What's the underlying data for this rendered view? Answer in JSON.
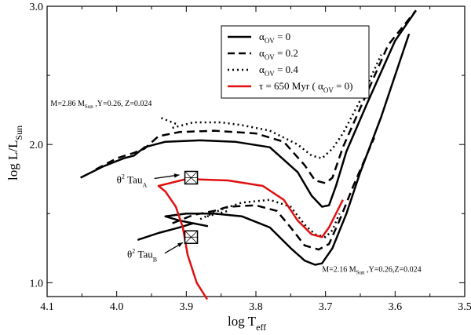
{
  "chart_data": {
    "type": "line",
    "x_reversed": true,
    "xlim": [
      4.1,
      3.5
    ],
    "ylim": [
      0.9,
      3.0
    ],
    "xticks": [
      "4.1",
      "4.0",
      "3.9",
      "3.8",
      "3.7",
      "3.6",
      "3.5"
    ],
    "xtick_values": [
      4.1,
      4.0,
      3.9,
      3.8,
      3.7,
      3.6,
      3.5
    ],
    "yticks": [
      "1.0",
      "2.0",
      "3.0"
    ],
    "ytick_values": [
      1.0,
      2.0,
      3.0
    ],
    "xlabel": {
      "main": "log T",
      "sub": "eff"
    },
    "ylabel": {
      "main": "log L/L",
      "sub": "Sun"
    },
    "legend": {
      "position": "top-right",
      "entries": [
        {
          "style": "solid",
          "color": "#000000",
          "alpha": "α",
          "sub": "OV",
          "rest": " = 0"
        },
        {
          "style": "dashed",
          "color": "#000000",
          "alpha": "α",
          "sub": "OV",
          "rest": " = 0.2"
        },
        {
          "style": "dotted",
          "color": "#000000",
          "alpha": "α",
          "sub": "OV",
          "rest": " = 0.4"
        },
        {
          "style": "red",
          "color": "#e01010",
          "text": "τ = 650 Myr (  α",
          "sub": "OV",
          "rest": " = 0)"
        }
      ]
    },
    "series": [
      {
        "name": "α_OV = 0, M = 2.86",
        "style": "solid",
        "points": [
          [
            4.052,
            1.76
          ],
          [
            4.02,
            1.84
          ],
          [
            3.99,
            1.9
          ],
          [
            3.975,
            1.92
          ],
          [
            3.96,
            1.98
          ],
          [
            3.93,
            2.02
          ],
          [
            3.88,
            2.03
          ],
          [
            3.83,
            2.02
          ],
          [
            3.78,
            1.98
          ],
          [
            3.74,
            1.8
          ],
          [
            3.72,
            1.63
          ],
          [
            3.705,
            1.55
          ],
          [
            3.695,
            1.56
          ],
          [
            3.685,
            1.7
          ],
          [
            3.67,
            1.95
          ],
          [
            3.64,
            2.3
          ],
          [
            3.6,
            2.75
          ],
          [
            3.57,
            2.97
          ]
        ]
      },
      {
        "name": "α_OV = 0.2, M = 2.86",
        "style": "dashed",
        "points": [
          [
            4.03,
            1.82
          ],
          [
            4.0,
            1.9
          ],
          [
            3.975,
            1.94
          ],
          [
            3.96,
            1.97
          ],
          [
            3.94,
            2.06
          ],
          [
            3.91,
            2.09
          ],
          [
            3.86,
            2.1
          ],
          [
            3.8,
            2.08
          ],
          [
            3.76,
            2.02
          ],
          [
            3.73,
            1.85
          ],
          [
            3.715,
            1.74
          ],
          [
            3.7,
            1.72
          ],
          [
            3.69,
            1.76
          ],
          [
            3.675,
            1.98
          ],
          [
            3.645,
            2.32
          ],
          [
            3.61,
            2.72
          ],
          [
            3.57,
            2.97
          ]
        ]
      },
      {
        "name": "α_OV = 0.4, M = 2.86",
        "style": "dotted",
        "points": [
          [
            3.92,
            2.12
          ],
          [
            3.89,
            2.16
          ],
          [
            3.85,
            2.16
          ],
          [
            3.82,
            2.14
          ],
          [
            3.78,
            2.1
          ],
          [
            3.74,
            2.0
          ],
          [
            3.72,
            1.92
          ],
          [
            3.705,
            1.9
          ],
          [
            3.69,
            1.97
          ],
          [
            3.675,
            2.08
          ],
          [
            3.65,
            2.32
          ],
          [
            3.62,
            2.65
          ]
        ]
      },
      {
        "name": "α_OV = 0.4 hook, M = 2.86",
        "style": "dotted",
        "points": [
          [
            3.915,
            2.15
          ],
          [
            3.94,
            2.2
          ]
        ]
      },
      {
        "name": "α_OV = 0, M = 2.16",
        "style": "solid",
        "points": [
          [
            3.97,
            1.31
          ],
          [
            3.94,
            1.36
          ],
          [
            3.91,
            1.4
          ],
          [
            3.89,
            1.43
          ],
          [
            3.87,
            1.41
          ],
          [
            3.91,
            1.45
          ],
          [
            3.93,
            1.48
          ],
          [
            3.9,
            1.5
          ],
          [
            3.86,
            1.5
          ],
          [
            3.82,
            1.48
          ],
          [
            3.78,
            1.4
          ],
          [
            3.75,
            1.25
          ],
          [
            3.73,
            1.16
          ],
          [
            3.715,
            1.13
          ],
          [
            3.705,
            1.14
          ],
          [
            3.69,
            1.25
          ],
          [
            3.67,
            1.5
          ],
          [
            3.65,
            1.8
          ],
          [
            3.62,
            2.2
          ],
          [
            3.6,
            2.5
          ],
          [
            3.58,
            2.8
          ]
        ]
      },
      {
        "name": "α_OV = 0.2, M = 2.16",
        "style": "dashed",
        "points": [
          [
            3.92,
            1.43
          ],
          [
            3.89,
            1.49
          ],
          [
            3.86,
            1.52
          ],
          [
            3.84,
            1.55
          ],
          [
            3.8,
            1.56
          ],
          [
            3.77,
            1.52
          ],
          [
            3.75,
            1.4
          ],
          [
            3.73,
            1.27
          ],
          [
            3.71,
            1.24
          ],
          [
            3.695,
            1.28
          ],
          [
            3.68,
            1.45
          ],
          [
            3.66,
            1.7
          ],
          [
            3.63,
            2.05
          ]
        ]
      },
      {
        "name": "α_OV = 0.4, M = 2.16",
        "style": "dotted",
        "points": [
          [
            3.88,
            1.46
          ],
          [
            3.85,
            1.53
          ],
          [
            3.82,
            1.58
          ],
          [
            3.78,
            1.6
          ],
          [
            3.75,
            1.55
          ],
          [
            3.73,
            1.42
          ],
          [
            3.715,
            1.35
          ],
          [
            3.7,
            1.33
          ],
          [
            3.69,
            1.38
          ],
          [
            3.68,
            1.5
          ]
        ]
      },
      {
        "name": "α_OV = 0.4 tail, M = 2.16",
        "style": "dotted",
        "points": [
          [
            3.87,
            1.48
          ],
          [
            3.84,
            1.52
          ]
        ]
      },
      {
        "name": "τ = 650 Myr isochrone",
        "style": "red",
        "points": [
          [
            3.87,
            0.88
          ],
          [
            3.885,
            1.0
          ],
          [
            3.898,
            1.2
          ],
          [
            3.905,
            1.4
          ],
          [
            3.915,
            1.55
          ],
          [
            3.93,
            1.66
          ],
          [
            3.94,
            1.7
          ],
          [
            3.9,
            1.75
          ],
          [
            3.84,
            1.74
          ],
          [
            3.79,
            1.7
          ],
          [
            3.76,
            1.6
          ],
          [
            3.74,
            1.45
          ],
          [
            3.72,
            1.35
          ],
          [
            3.705,
            1.33
          ],
          [
            3.695,
            1.4
          ],
          [
            3.68,
            1.55
          ],
          [
            3.675,
            1.6
          ]
        ]
      }
    ],
    "markers": [
      {
        "name": "theta2-tau-a-box",
        "x": 3.893,
        "y": 1.76
      },
      {
        "name": "theta2-tau-b-box",
        "x": 3.893,
        "y": 1.33
      }
    ],
    "annotations": [
      {
        "name": "track-label-286",
        "x": 4.095,
        "y": 2.28,
        "main": "M=2.86 M",
        "sub": "Sun",
        "rest": " ,Y=0.26, Z=0.024"
      },
      {
        "name": "track-label-216",
        "x": 3.705,
        "y": 1.08,
        "main": "M=2.16 M",
        "sub": "Sun",
        "rest": " ,Y=0.26,Z=0.024"
      },
      {
        "name": "theta2-tau-a-label",
        "x": 4.0,
        "y": 1.72,
        "sup": "2",
        "main": "θ",
        "rest": " Tau",
        "sub": "A",
        "arrow_to": [
          3.91,
          1.78
        ]
      },
      {
        "name": "theta2-tau-b-label",
        "x": 3.985,
        "y": 1.18,
        "sup": "2",
        "main": "θ",
        "rest": " Tau",
        "sub": "B",
        "arrow_to": [
          3.905,
          1.29
        ]
      }
    ]
  }
}
